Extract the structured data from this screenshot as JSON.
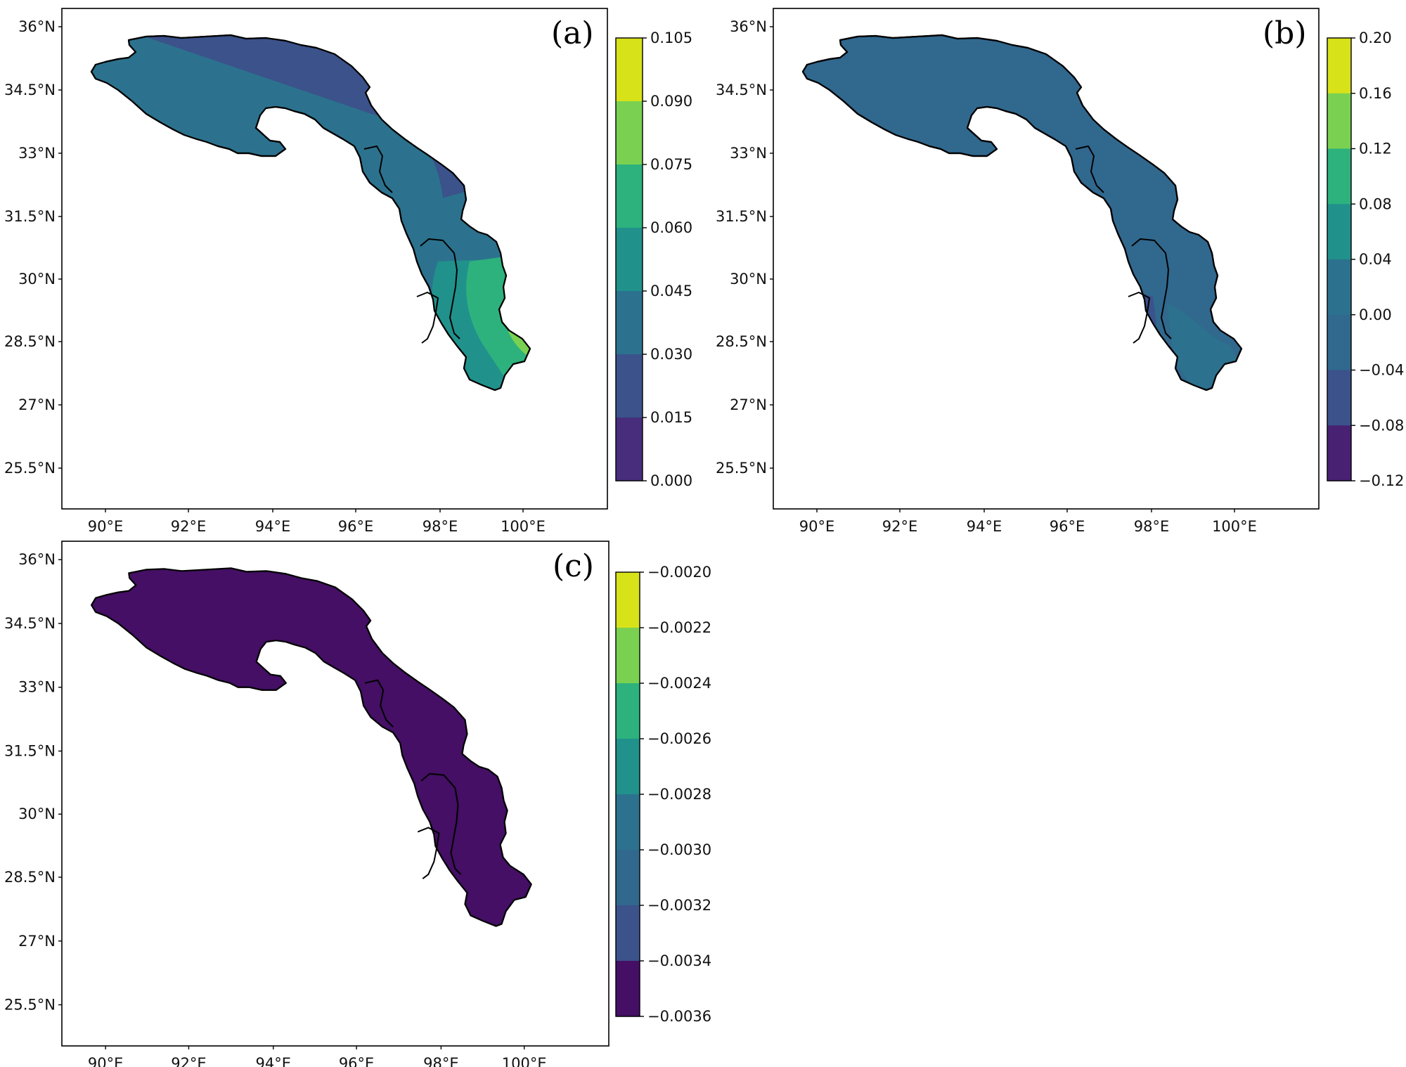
{
  "colors": {
    "viridis9": [
      "#440154",
      "#46327e",
      "#365c8d",
      "#277f8e",
      "#1fa187",
      "#4ac16d",
      "#a0da39",
      "#fde725",
      "#d8e219"
    ],
    "frame": "#000000"
  },
  "panels": [
    {
      "id": "a",
      "label": "(a)",
      "basin_color": "#2c728e",
      "colorbar": {
        "ticks": [
          "0.105",
          "0.090",
          "0.075",
          "0.060",
          "0.045",
          "0.030",
          "0.015",
          "0.000"
        ],
        "bands": [
          "#d8e219",
          "#7ad151",
          "#2db27d",
          "#21918c",
          "#2c728e",
          "#3b528b",
          "#472d7b"
        ]
      },
      "field": [
        {
          "name": "west-band",
          "color": "#2c728e"
        },
        {
          "name": "middle-band",
          "color": "#3b528b"
        },
        {
          "name": "lower-band",
          "color": "#2c728e"
        },
        {
          "name": "south-band",
          "color": "#21918c"
        },
        {
          "name": "east-band",
          "color": "#2db27d"
        },
        {
          "name": "far-east-band",
          "color": "#7ad151"
        }
      ]
    },
    {
      "id": "b",
      "label": "(b)",
      "basin_color": "#31688e",
      "colorbar": {
        "ticks": [
          "0.20",
          "0.16",
          "0.12",
          "0.08",
          "0.04",
          "0.00",
          "−0.04",
          "−0.08",
          "−0.12"
        ],
        "bands": [
          "#d8e219",
          "#7ad151",
          "#2db27d",
          "#21918c",
          "#2c728e",
          "#31688e",
          "#3b528b",
          "#482173"
        ]
      }
    },
    {
      "id": "c",
      "label": "(c)",
      "basin_color": "#440f64",
      "colorbar": {
        "ticks": [
          "−0.0020",
          "−0.0022",
          "−0.0024",
          "−0.0026",
          "−0.0028",
          "−0.0030",
          "−0.0032",
          "−0.0034",
          "−0.0036"
        ],
        "bands": [
          "#d8e219",
          "#7ad151",
          "#2db27d",
          "#21918c",
          "#2c728e",
          "#31688e",
          "#3b528b",
          "#440f64"
        ]
      }
    }
  ],
  "axes": {
    "lon_ticks": [
      "90°E",
      "92°E",
      "94°E",
      "96°E",
      "98°E",
      "100°E"
    ],
    "lat_ticks": [
      "36°N",
      "34.5°N",
      "33°N",
      "31.5°N",
      "30°N",
      "28.5°N",
      "27°N",
      "25.5°N"
    ]
  }
}
